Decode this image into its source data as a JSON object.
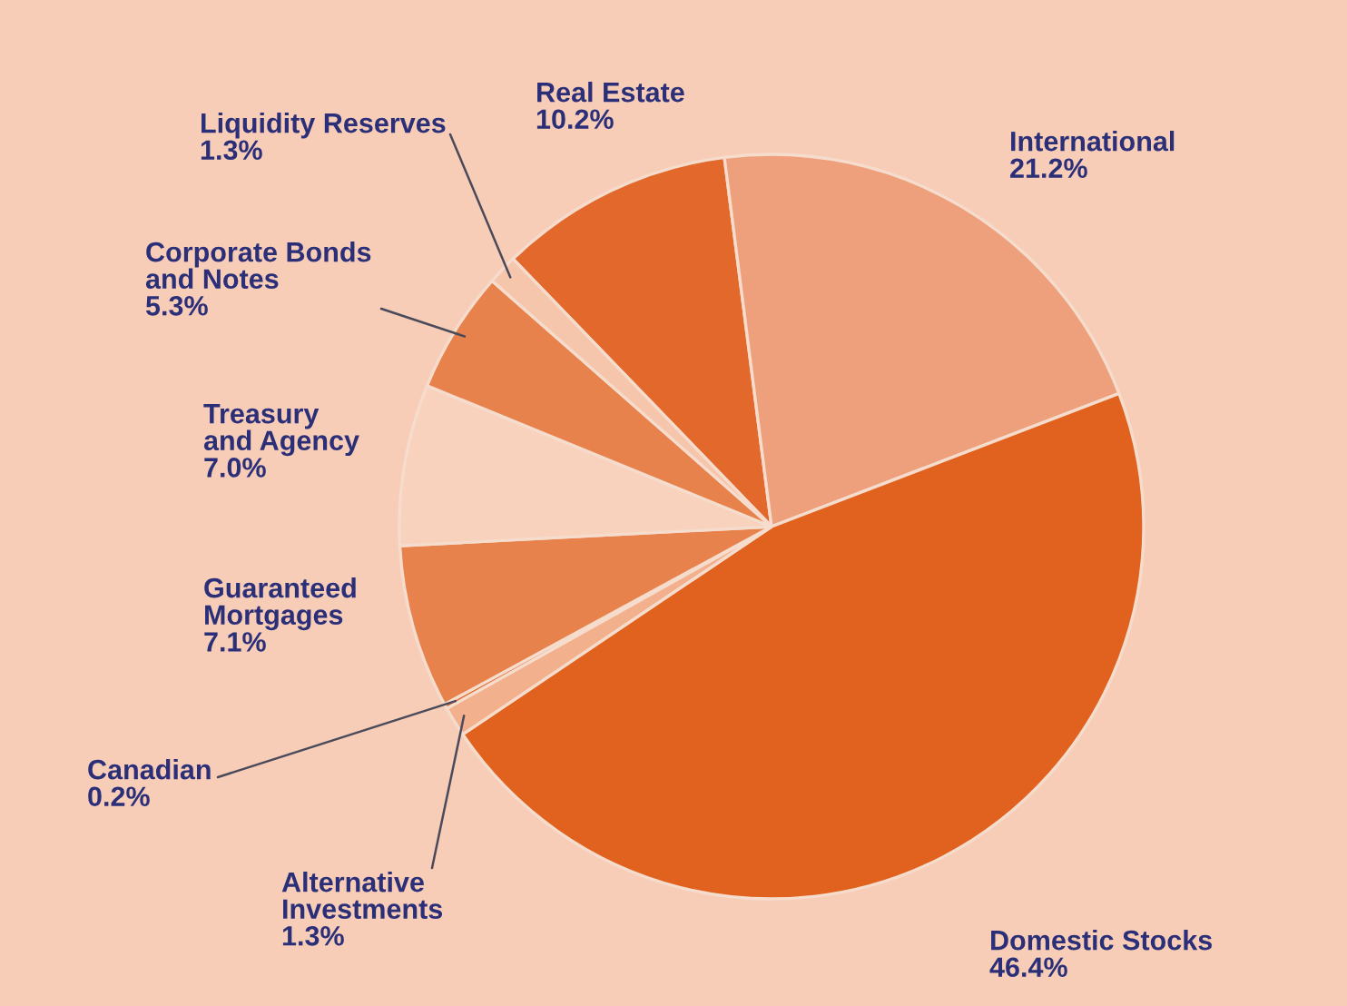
{
  "chart_data": {
    "type": "pie",
    "categories": [
      "Real Estate",
      "International",
      "Domestic Stocks",
      "Alternative Investments",
      "Canadian",
      "Guaranteed Mortgages",
      "Treasury and Agency",
      "Corporate Bonds and Notes",
      "Liquidity Reserves"
    ],
    "values": [
      10.2,
      21.2,
      46.4,
      1.3,
      0.2,
      7.1,
      7.0,
      5.3,
      1.3
    ],
    "value_labels": [
      "10.2%",
      "21.2%",
      "46.4%",
      "1.3%",
      "0.2%",
      "7.1%",
      "7.0%",
      "5.3%",
      "1.3%"
    ],
    "colors": [
      "#e2682c",
      "#eea07c",
      "#e0621e",
      "#f2b08c",
      "#e2682c",
      "#e8824c",
      "#f8d2bc",
      "#e8824c",
      "#f6c6ac"
    ],
    "legend": false
  }
}
